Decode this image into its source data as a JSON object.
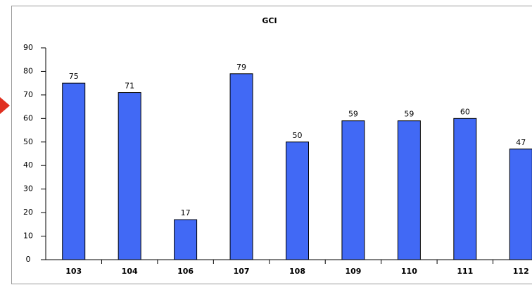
{
  "chart_data": {
    "type": "bar",
    "title": "GCI",
    "categories": [
      "103",
      "104",
      "106",
      "107",
      "108",
      "109",
      "110",
      "111",
      "112"
    ],
    "values": [
      75,
      71,
      17,
      79,
      50,
      59,
      59,
      60,
      47
    ],
    "color": "#4169f5",
    "ylim": [
      0,
      90
    ],
    "yticks": [
      0,
      10,
      20,
      30,
      40,
      50,
      60,
      70,
      80,
      90
    ]
  }
}
